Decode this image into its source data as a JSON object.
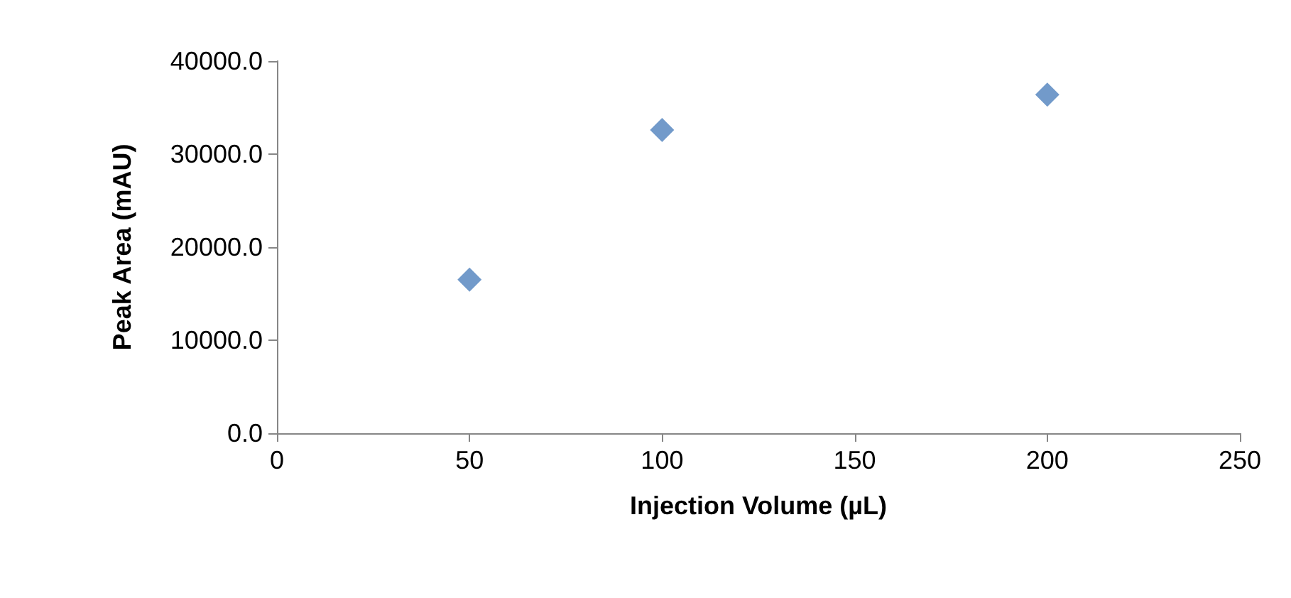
{
  "chart_data": {
    "type": "scatter",
    "xlabel": "Injection Volume (µL)",
    "ylabel": "Peak Area (mAU)",
    "x": [
      50,
      100,
      200
    ],
    "series": [
      {
        "color": "#4f81bd",
        "values": [
          16500,
          32600,
          36400
        ]
      }
    ],
    "xlim": [
      0,
      250
    ],
    "xticks": [
      0,
      50,
      100,
      150,
      200,
      250
    ],
    "ylim": [
      0,
      40000
    ],
    "yticks": [
      {
        "value": 0,
        "label": "0.0"
      },
      {
        "value": 10000,
        "label": "10000.0"
      },
      {
        "value": 20000,
        "label": "20000.0"
      },
      {
        "value": 30000,
        "label": "30000.0"
      },
      {
        "value": 40000,
        "label": "40000.0"
      }
    ],
    "grid": false,
    "marker": "diamond"
  }
}
